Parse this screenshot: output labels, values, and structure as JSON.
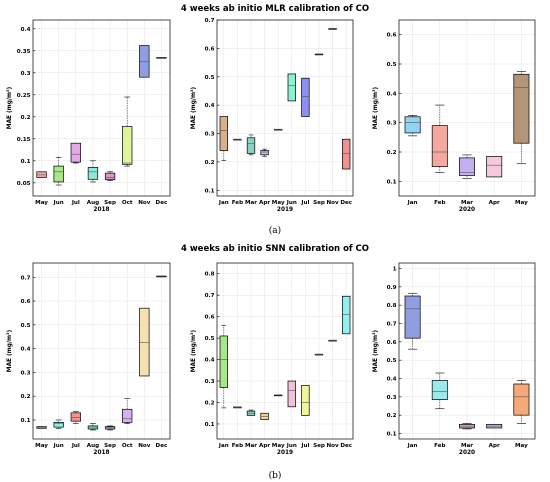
{
  "figure": {
    "title_a": "4 weeks ab initio MLR calibration of CO",
    "title_b": "4 weeks ab initio SNN calibration of CO",
    "label_a": "(a)",
    "label_b": "(b)"
  },
  "chart_data": [
    {
      "type": "box",
      "ylabel": "MAE (mg/m³)",
      "xlabel": "2018",
      "ylim": [
        0.02,
        0.42
      ],
      "yticks": [
        0.05,
        0.1,
        0.15,
        0.2,
        0.25,
        0.3,
        0.35,
        0.4
      ],
      "categories": [
        "May",
        "Jun",
        "Jul",
        "Aug",
        "Sep",
        "Oct",
        "Nov",
        "Dec"
      ],
      "boxes": [
        {
          "min": 0.062,
          "q1": 0.062,
          "median": 0.068,
          "q3": 0.075,
          "max": 0.075,
          "color": "#f4a6a6"
        },
        {
          "min": 0.045,
          "q1": 0.052,
          "median": 0.075,
          "q3": 0.088,
          "max": 0.108,
          "color": "#a9e58a"
        },
        {
          "min": 0.095,
          "q1": 0.097,
          "median": 0.115,
          "q3": 0.14,
          "max": 0.14,
          "color": "#e6a9e8"
        },
        {
          "min": 0.052,
          "q1": 0.058,
          "median": 0.075,
          "q3": 0.085,
          "max": 0.1,
          "color": "#8fe8d6"
        },
        {
          "min": 0.055,
          "q1": 0.057,
          "median": 0.062,
          "q3": 0.072,
          "max": 0.075,
          "color": "#d69ac9"
        },
        {
          "min": 0.088,
          "q1": 0.092,
          "median": 0.095,
          "q3": 0.178,
          "max": 0.245,
          "color": "#dff59a"
        },
        {
          "min": 0.29,
          "q1": 0.29,
          "median": 0.325,
          "q3": 0.362,
          "max": 0.362,
          "color": "#8f9ee0"
        },
        {
          "min": 0.335,
          "q1": 0.335,
          "median": 0.335,
          "q3": 0.335,
          "max": 0.335,
          "color": "#f4e2a6"
        }
      ]
    },
    {
      "type": "box",
      "ylabel": "MAE (mg/m³)",
      "xlabel": "2019",
      "ylim": [
        0.08,
        0.7
      ],
      "yticks": [
        0.1,
        0.2,
        0.3,
        0.4,
        0.5,
        0.6,
        0.7
      ],
      "categories": [
        "Jan",
        "Feb",
        "Mar",
        "Apr",
        "May",
        "Jun",
        "Jul",
        "Sep",
        "Nov",
        "Dec"
      ],
      "boxes": [
        {
          "min": 0.205,
          "q1": 0.24,
          "median": 0.31,
          "q3": 0.36,
          "max": 0.36,
          "color": "#d9b08c"
        },
        {
          "min": 0.28,
          "q1": 0.28,
          "median": 0.28,
          "q3": 0.28,
          "max": 0.28,
          "color": "#9ecbf0"
        },
        {
          "min": 0.225,
          "q1": 0.23,
          "median": 0.265,
          "q3": 0.285,
          "max": 0.295,
          "color": "#8fd0c6"
        },
        {
          "min": 0.22,
          "q1": 0.225,
          "median": 0.235,
          "q3": 0.24,
          "max": 0.245,
          "color": "#b8b8f0"
        },
        {
          "min": 0.315,
          "q1": 0.315,
          "median": 0.315,
          "q3": 0.315,
          "max": 0.315,
          "color": "#e6c9a6"
        },
        {
          "min": 0.415,
          "q1": 0.415,
          "median": 0.47,
          "q3": 0.51,
          "max": 0.51,
          "color": "#8ff0d0"
        },
        {
          "min": 0.36,
          "q1": 0.36,
          "median": 0.43,
          "q3": 0.495,
          "max": 0.495,
          "color": "#8f8ff0"
        },
        {
          "min": 0.58,
          "q1": 0.58,
          "median": 0.58,
          "q3": 0.58,
          "max": 0.58,
          "color": "#c9c9c9"
        },
        {
          "min": 0.67,
          "q1": 0.67,
          "median": 0.67,
          "q3": 0.67,
          "max": 0.67,
          "color": "#c9c9c9"
        },
        {
          "min": 0.175,
          "q1": 0.175,
          "median": 0.23,
          "q3": 0.28,
          "max": 0.28,
          "color": "#f09090"
        }
      ]
    },
    {
      "type": "box",
      "ylabel": "MAE (mg/m³)",
      "xlabel": "2020",
      "ylim": [
        0.05,
        0.65
      ],
      "yticks": [
        0.1,
        0.2,
        0.3,
        0.4,
        0.5,
        0.6
      ],
      "categories": [
        "Jan",
        "Feb",
        "Mar",
        "Apr",
        "May"
      ],
      "boxes": [
        {
          "min": 0.255,
          "q1": 0.265,
          "median": 0.3,
          "q3": 0.32,
          "max": 0.325,
          "color": "#8fd4f5"
        },
        {
          "min": 0.13,
          "q1": 0.15,
          "median": 0.2,
          "q3": 0.29,
          "max": 0.36,
          "color": "#f5a8a0"
        },
        {
          "min": 0.11,
          "q1": 0.12,
          "median": 0.13,
          "q3": 0.18,
          "max": 0.19,
          "color": "#c3b0f0"
        },
        {
          "min": 0.115,
          "q1": 0.115,
          "median": 0.155,
          "q3": 0.185,
          "max": 0.185,
          "color": "#f5c9e0"
        },
        {
          "min": 0.16,
          "q1": 0.23,
          "median": 0.42,
          "q3": 0.465,
          "max": 0.475,
          "color": "#b5957a"
        }
      ]
    },
    {
      "type": "box",
      "ylabel": "MAE (mg/m³)",
      "xlabel": "2018",
      "ylim": [
        0.02,
        0.76
      ],
      "yticks": [
        0.1,
        0.2,
        0.3,
        0.4,
        0.5,
        0.6,
        0.7
      ],
      "categories": [
        "May",
        "Jun",
        "Jul",
        "Aug",
        "Sep",
        "Oct",
        "Nov",
        "Dec"
      ],
      "boxes": [
        {
          "min": 0.065,
          "q1": 0.065,
          "median": 0.068,
          "q3": 0.072,
          "max": 0.072,
          "color": "#a9e58a"
        },
        {
          "min": 0.065,
          "q1": 0.07,
          "median": 0.085,
          "q3": 0.09,
          "max": 0.1,
          "color": "#8ff0e0"
        },
        {
          "min": 0.085,
          "q1": 0.095,
          "median": 0.11,
          "q3": 0.13,
          "max": 0.135,
          "color": "#f59090"
        },
        {
          "min": 0.058,
          "q1": 0.062,
          "median": 0.07,
          "q3": 0.075,
          "max": 0.085,
          "color": "#8fe8d6"
        },
        {
          "min": 0.058,
          "q1": 0.062,
          "median": 0.068,
          "q3": 0.072,
          "max": 0.075,
          "color": "#b8b8f0"
        },
        {
          "min": 0.085,
          "q1": 0.09,
          "median": 0.105,
          "q3": 0.145,
          "max": 0.19,
          "color": "#d6b0f0"
        },
        {
          "min": 0.285,
          "q1": 0.285,
          "median": 0.425,
          "q3": 0.57,
          "max": 0.57,
          "color": "#f5e0b0"
        },
        {
          "min": 0.705,
          "q1": 0.705,
          "median": 0.705,
          "q3": 0.705,
          "max": 0.705,
          "color": "#c9c9c9"
        }
      ]
    },
    {
      "type": "box",
      "ylabel": "MAE (mg/m³)",
      "xlabel": "2019",
      "ylim": [
        0.03,
        0.85
      ],
      "yticks": [
        0.1,
        0.2,
        0.3,
        0.4,
        0.5,
        0.6,
        0.7,
        0.8
      ],
      "categories": [
        "Jan",
        "Feb",
        "Mar",
        "Apr",
        "May",
        "Jun",
        "Jul",
        "Sep",
        "Nov",
        "Dec"
      ],
      "boxes": [
        {
          "min": 0.175,
          "q1": 0.27,
          "median": 0.4,
          "q3": 0.51,
          "max": 0.56,
          "color": "#a9e58a"
        },
        {
          "min": 0.175,
          "q1": 0.175,
          "median": 0.18,
          "q3": 0.18,
          "max": 0.18,
          "color": "#d9b08c"
        },
        {
          "min": 0.14,
          "q1": 0.14,
          "median": 0.15,
          "q3": 0.16,
          "max": 0.165,
          "color": "#8fd0c6"
        },
        {
          "min": 0.12,
          "q1": 0.12,
          "median": 0.135,
          "q3": 0.15,
          "max": 0.15,
          "color": "#f5d08a"
        },
        {
          "min": 0.235,
          "q1": 0.235,
          "median": 0.235,
          "q3": 0.235,
          "max": 0.235,
          "color": "#c9c9c9"
        },
        {
          "min": 0.18,
          "q1": 0.18,
          "median": 0.255,
          "q3": 0.3,
          "max": 0.3,
          "color": "#f0c0d6"
        },
        {
          "min": 0.14,
          "q1": 0.14,
          "median": 0.2,
          "q3": 0.28,
          "max": 0.28,
          "color": "#eef59a"
        },
        {
          "min": 0.425,
          "q1": 0.425,
          "median": 0.425,
          "q3": 0.425,
          "max": 0.425,
          "color": "#c9c9c9"
        },
        {
          "min": 0.49,
          "q1": 0.49,
          "median": 0.49,
          "q3": 0.49,
          "max": 0.49,
          "color": "#c9c9c9"
        },
        {
          "min": 0.52,
          "q1": 0.52,
          "median": 0.61,
          "q3": 0.695,
          "max": 0.695,
          "color": "#8ff0f0"
        }
      ]
    },
    {
      "type": "box",
      "ylabel": "MAE (mg/m³)",
      "xlabel": "2020",
      "ylim": [
        0.07,
        1.03
      ],
      "yticks": [
        0.1,
        0.2,
        0.3,
        0.4,
        0.5,
        0.6,
        0.7,
        0.8,
        0.9,
        1
      ],
      "categories": [
        "Jan",
        "Feb",
        "Mar",
        "Apr",
        "May"
      ],
      "boxes": [
        {
          "min": 0.56,
          "q1": 0.62,
          "median": 0.78,
          "q3": 0.85,
          "max": 0.865,
          "color": "#8f9ee0"
        },
        {
          "min": 0.235,
          "q1": 0.285,
          "median": 0.33,
          "q3": 0.39,
          "max": 0.43,
          "color": "#9de8e8"
        },
        {
          "min": 0.125,
          "q1": 0.13,
          "median": 0.14,
          "q3": 0.15,
          "max": 0.155,
          "color": "#e0a9d6"
        },
        {
          "min": 0.13,
          "q1": 0.13,
          "median": 0.14,
          "q3": 0.15,
          "max": 0.15,
          "color": "#b8b8f0"
        },
        {
          "min": 0.155,
          "q1": 0.2,
          "median": 0.3,
          "q3": 0.37,
          "max": 0.39,
          "color": "#f5a878"
        }
      ]
    }
  ]
}
